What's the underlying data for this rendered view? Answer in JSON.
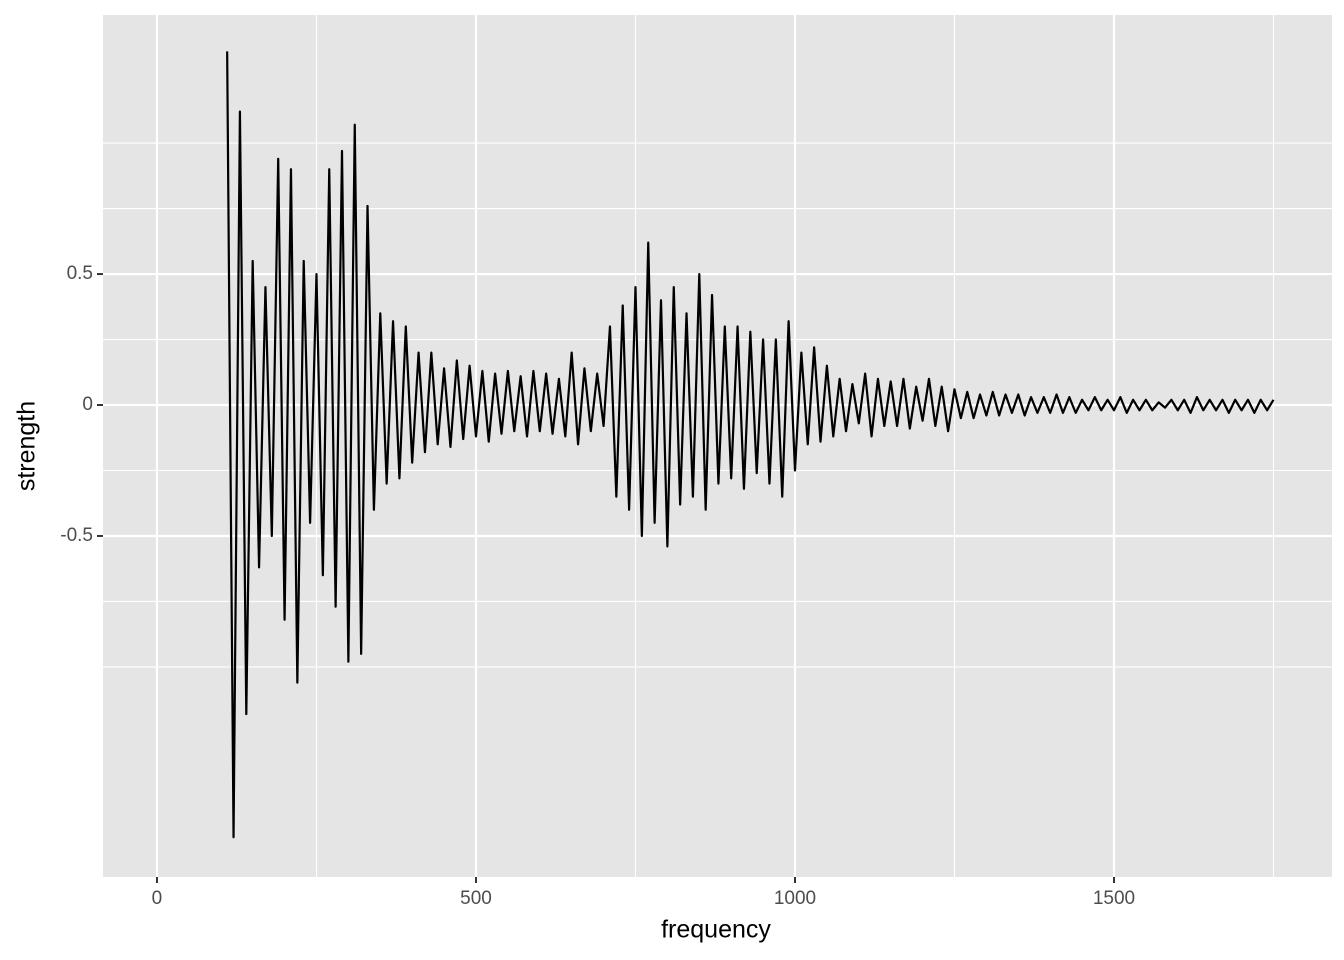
{
  "chart_data": {
    "type": "line",
    "x_label": "frequency",
    "y_label": "strength",
    "xlim": [
      -84.6,
      1841.7
    ],
    "ylim": [
      -1.802,
      1.489
    ],
    "xticks": [
      0,
      500,
      1000,
      1500
    ],
    "yticks": [
      -0.5,
      0.0,
      0.5
    ],
    "x_minor_grid": [
      250,
      750,
      1250,
      1750
    ],
    "y_minor_grid": [
      -1,
      -0.75,
      -0.25,
      0.25,
      0.75,
      1
    ],
    "grid": true,
    "series": [
      {
        "color": "#000000",
        "x": [
          110,
          120,
          130,
          140,
          150,
          160,
          170,
          180,
          190,
          200,
          210,
          220,
          230,
          240,
          250,
          260,
          270,
          280,
          290,
          300,
          310,
          320,
          330,
          340,
          350,
          360,
          370,
          380,
          390,
          400,
          410,
          420,
          430,
          440,
          450,
          460,
          470,
          480,
          490,
          500,
          510,
          520,
          530,
          540,
          550,
          560,
          570,
          580,
          590,
          600,
          610,
          620,
          630,
          640,
          650,
          660,
          670,
          680,
          690,
          700,
          710,
          720,
          730,
          740,
          750,
          760,
          770,
          780,
          790,
          800,
          810,
          820,
          830,
          840,
          850,
          860,
          870,
          880,
          890,
          900,
          910,
          920,
          930,
          940,
          950,
          960,
          970,
          980,
          990,
          1000,
          1010,
          1020,
          1030,
          1040,
          1050,
          1060,
          1070,
          1080,
          1090,
          1100,
          1110,
          1120,
          1130,
          1140,
          1150,
          1160,
          1170,
          1180,
          1190,
          1200,
          1210,
          1220,
          1230,
          1240,
          1250,
          1260,
          1270,
          1280,
          1290,
          1300,
          1310,
          1320,
          1330,
          1340,
          1350,
          1360,
          1370,
          1380,
          1390,
          1400,
          1410,
          1420,
          1430,
          1440,
          1450,
          1460,
          1470,
          1480,
          1490,
          1500,
          1510,
          1520,
          1530,
          1540,
          1550,
          1560,
          1570,
          1580,
          1590,
          1600,
          1610,
          1620,
          1630,
          1640,
          1650,
          1660,
          1670,
          1680,
          1690,
          1700,
          1710,
          1720,
          1730,
          1740,
          1750
        ],
        "values": [
          1.35,
          -1.65,
          1.12,
          -1.18,
          0.55,
          -0.62,
          0.45,
          -0.5,
          0.94,
          -0.82,
          0.9,
          -1.06,
          0.55,
          -0.45,
          0.5,
          -0.65,
          0.9,
          -0.77,
          0.97,
          -0.98,
          1.07,
          -0.95,
          0.76,
          -0.4,
          0.35,
          -0.3,
          0.32,
          -0.28,
          0.3,
          -0.22,
          0.2,
          -0.18,
          0.2,
          -0.15,
          0.14,
          -0.16,
          0.17,
          -0.13,
          0.15,
          -0.12,
          0.13,
          -0.14,
          0.12,
          -0.11,
          0.13,
          -0.1,
          0.11,
          -0.12,
          0.13,
          -0.1,
          0.12,
          -0.11,
          0.1,
          -0.12,
          0.2,
          -0.15,
          0.14,
          -0.1,
          0.12,
          -0.08,
          0.3,
          -0.35,
          0.38,
          -0.4,
          0.45,
          -0.5,
          0.62,
          -0.45,
          0.4,
          -0.54,
          0.45,
          -0.38,
          0.35,
          -0.35,
          0.5,
          -0.4,
          0.42,
          -0.3,
          0.3,
          -0.28,
          0.3,
          -0.32,
          0.28,
          -0.26,
          0.25,
          -0.3,
          0.25,
          -0.35,
          0.32,
          -0.25,
          0.2,
          -0.15,
          0.22,
          -0.14,
          0.15,
          -0.12,
          0.1,
          -0.1,
          0.08,
          -0.07,
          0.12,
          -0.12,
          0.1,
          -0.08,
          0.09,
          -0.08,
          0.1,
          -0.09,
          0.07,
          -0.06,
          0.1,
          -0.08,
          0.07,
          -0.1,
          0.06,
          -0.05,
          0.05,
          -0.05,
          0.04,
          -0.04,
          0.05,
          -0.04,
          0.04,
          -0.03,
          0.04,
          -0.04,
          0.03,
          -0.03,
          0.03,
          -0.03,
          0.04,
          -0.03,
          0.03,
          -0.03,
          0.02,
          -0.02,
          0.03,
          -0.02,
          0.02,
          -0.02,
          0.03,
          -0.03,
          0.02,
          -0.02,
          0.02,
          -0.02,
          0.01,
          -0.01,
          0.02,
          -0.02,
          0.02,
          -0.03,
          0.03,
          -0.02,
          0.02,
          -0.02,
          0.02,
          -0.03,
          0.02,
          -0.02,
          0.02,
          -0.03,
          0.02,
          -0.02,
          0.02
        ]
      }
    ]
  }
}
